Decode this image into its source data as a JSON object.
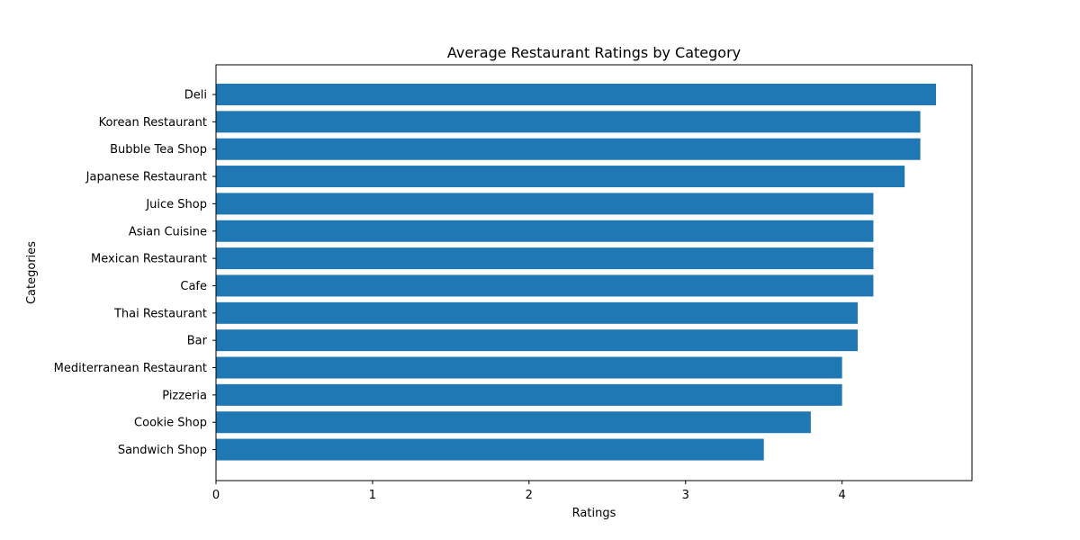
{
  "chart_data": {
    "type": "bar",
    "orientation": "horizontal",
    "title": "Average Restaurant Ratings by Category",
    "xlabel": "Ratings",
    "ylabel": "Categories",
    "categories": [
      "Deli",
      "Korean Restaurant",
      "Bubble Tea Shop",
      "Japanese Restaurant",
      "Juice Shop",
      "Asian Cuisine ",
      "Mexican Restaurant",
      "Cafe",
      "Thai Restaurant",
      "Bar",
      "Mediterranean Restaurant",
      "Pizzeria",
      "Cookie Shop",
      "Sandwich Shop"
    ],
    "values": [
      4.6,
      4.5,
      4.5,
      4.4,
      4.2,
      4.2,
      4.2,
      4.2,
      4.1,
      4.1,
      4.0,
      4.0,
      3.8,
      3.5
    ],
    "xlim": [
      0,
      4.83
    ],
    "xticks": [
      "0",
      "1",
      "2",
      "3",
      "4"
    ],
    "grid": false,
    "bar_color": "#1f77b4"
  }
}
